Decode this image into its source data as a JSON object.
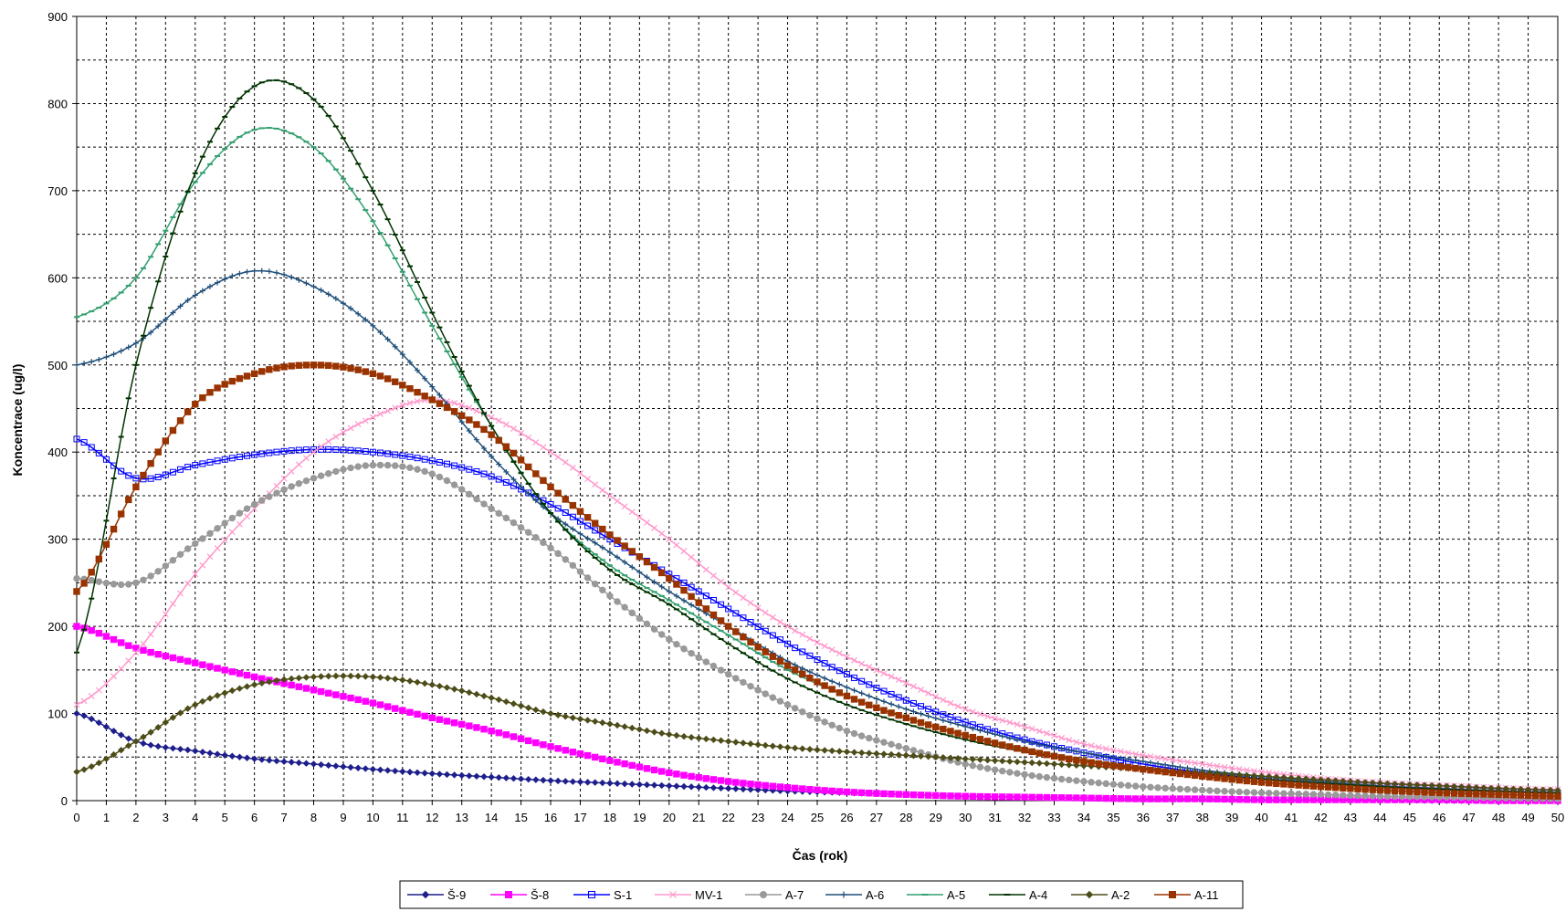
{
  "chart_data": {
    "type": "line",
    "title": "",
    "xlabel": "Čas (rok)",
    "ylabel": "Koncentrace (ug/l)",
    "xlim": [
      0,
      50
    ],
    "ylim": [
      0,
      900
    ],
    "x_ticks": [
      0,
      1,
      2,
      3,
      4,
      5,
      6,
      7,
      8,
      9,
      10,
      11,
      12,
      13,
      14,
      15,
      16,
      17,
      18,
      19,
      20,
      21,
      22,
      23,
      24,
      25,
      26,
      27,
      28,
      29,
      30,
      31,
      32,
      33,
      34,
      35,
      36,
      37,
      38,
      39,
      40,
      41,
      42,
      43,
      44,
      45,
      46,
      47,
      48,
      49,
      50
    ],
    "y_ticks": [
      0,
      100,
      200,
      300,
      400,
      500,
      600,
      700,
      800,
      900
    ],
    "grid": true,
    "legend_position": "bottom",
    "x": [
      0,
      2,
      4,
      6,
      8,
      10,
      12,
      14,
      16,
      18,
      20,
      22,
      24,
      26,
      28,
      30,
      32,
      34,
      36,
      38,
      40,
      42,
      44,
      46,
      48,
      50
    ],
    "series": [
      {
        "name": "Š-9",
        "color": "#1f1f8c",
        "marker": "diamond",
        "values": [
          100,
          68,
          57,
          48,
          42,
          36,
          31,
          27,
          23,
          20,
          17,
          14,
          11,
          9,
          7,
          5,
          4,
          3,
          2,
          2,
          1,
          1,
          1,
          0,
          0,
          0
        ]
      },
      {
        "name": "Š-8",
        "color": "#ff00ff",
        "marker": "square",
        "values": [
          200,
          175,
          158,
          142,
          127,
          112,
          95,
          80,
          62,
          46,
          32,
          22,
          15,
          10,
          7,
          5,
          4,
          3,
          2,
          2,
          1,
          1,
          1,
          1,
          0,
          0
        ]
      },
      {
        "name": "S-1",
        "color": "#0000ff",
        "marker": "square-open",
        "values": [
          415,
          370,
          385,
          397,
          403,
          400,
          390,
          372,
          340,
          300,
          260,
          220,
          180,
          145,
          115,
          90,
          70,
          55,
          42,
          32,
          25,
          20,
          16,
          12,
          10,
          8
        ]
      },
      {
        "name": "MV-1",
        "color": "#ff99cc",
        "marker": "x",
        "values": [
          110,
          170,
          260,
          335,
          400,
          440,
          460,
          440,
          400,
          350,
          300,
          245,
          200,
          165,
          135,
          105,
          85,
          65,
          52,
          42,
          33,
          26,
          21,
          18,
          15,
          13
        ]
      },
      {
        "name": "A-7",
        "color": "#999999",
        "marker": "circle",
        "values": [
          255,
          250,
          295,
          340,
          370,
          385,
          375,
          335,
          290,
          235,
          185,
          145,
          110,
          80,
          60,
          42,
          30,
          22,
          16,
          12,
          9,
          7,
          5,
          4,
          3,
          2
        ]
      },
      {
        "name": "A-6",
        "color": "#1f4e79",
        "marker": "plus",
        "values": [
          500,
          525,
          580,
          608,
          590,
          545,
          475,
          395,
          330,
          285,
          240,
          200,
          160,
          130,
          105,
          85,
          68,
          55,
          45,
          35,
          28,
          22,
          17,
          14,
          11,
          9
        ]
      },
      {
        "name": "A-5",
        "color": "#33a070",
        "marker": "dash",
        "values": [
          555,
          600,
          710,
          770,
          750,
          665,
          545,
          430,
          330,
          270,
          230,
          190,
          150,
          120,
          95,
          75,
          60,
          47,
          38,
          30,
          24,
          19,
          15,
          12,
          10,
          8
        ]
      },
      {
        "name": "A-4",
        "color": "#003300",
        "marker": "dash",
        "values": [
          170,
          500,
          720,
          820,
          805,
          700,
          560,
          430,
          330,
          265,
          225,
          180,
          140,
          110,
          88,
          70,
          56,
          45,
          37,
          30,
          25,
          20,
          16,
          13,
          11,
          9
        ]
      },
      {
        "name": "A-2",
        "color": "#4d4d19",
        "marker": "diamond",
        "values": [
          33,
          68,
          110,
          133,
          142,
          142,
          133,
          118,
          100,
          88,
          76,
          68,
          61,
          56,
          52,
          48,
          44,
          40,
          36,
          32,
          28,
          24,
          20,
          17,
          14,
          12
        ]
      },
      {
        "name": "A-11",
        "color": "#993300",
        "marker": "square",
        "values": [
          240,
          360,
          455,
          490,
          500,
          490,
          460,
          420,
          360,
          305,
          255,
          200,
          155,
          120,
          95,
          75,
          58,
          45,
          36,
          28,
          21,
          16,
          12,
          9,
          7,
          5
        ]
      }
    ]
  }
}
